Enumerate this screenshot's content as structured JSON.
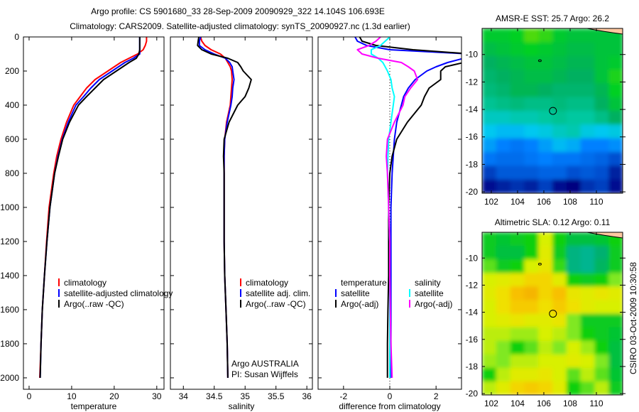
{
  "title_line1": "Argo profile: CS 5901680_33 28-Sep-2009 20090929_322 14.104S 106.693E",
  "title_line2": "Climatology: CARS2009. Satellite-adjusted climatology: synTS_20090927.nc (1.3d earlier)",
  "annotation": [
    "Argo AUSTRALIA",
    "PI: Susan Wijffels"
  ],
  "footer_stamp": "CSIRO 03-Oct-2009 10:30:58",
  "chart_data": [
    {
      "type": "line",
      "id": "temperature",
      "xlabel": "temperature",
      "ylabel": "",
      "xlim": [
        -1.33,
        31.7
      ],
      "ylim": [
        0,
        2067
      ],
      "y_reversed": true,
      "xticks": [
        0,
        10,
        20,
        30
      ],
      "xtick_labels": [
        "0",
        "10",
        "20",
        "30"
      ],
      "yticks": [
        0,
        200,
        400,
        600,
        800,
        1000,
        1200,
        1400,
        1600,
        1800,
        2000
      ],
      "ytick_labels": [
        "0",
        "200",
        "400",
        "600",
        "800",
        "1000",
        "1200",
        "1400",
        "1600",
        "1800",
        "2000"
      ],
      "depth": [
        0,
        25,
        50,
        75,
        100,
        125,
        150,
        175,
        200,
        250,
        300,
        350,
        400,
        500,
        600,
        700,
        800,
        1000,
        1200,
        1400,
        1600,
        1800,
        2000
      ],
      "legend": {
        "placement": "lower-middle",
        "headers": []
      },
      "series": [
        {
          "name": "climatology",
          "color": "#ff0000",
          "values": [
            27.6,
            27.6,
            27.3,
            26.8,
            25.5,
            23.5,
            21.5,
            20,
            18.5,
            15.5,
            13.5,
            12,
            10.5,
            8.8,
            7.5,
            6.5,
            5.8,
            4.7,
            4.1,
            3.6,
            3.1,
            2.8,
            2.5
          ]
        },
        {
          "name": "satellite-adjusted climatology",
          "color": "#0000ff",
          "values": [
            26,
            26,
            26,
            26,
            26,
            24.5,
            22.5,
            21,
            19.5,
            16.5,
            14.5,
            12.8,
            11,
            9.2,
            7.8,
            6.8,
            6,
            4.9,
            4.2,
            3.6,
            3.1,
            2.8,
            2.6
          ]
        },
        {
          "name": "Argo(..raw -QC)",
          "color": "#000000",
          "values": [
            26,
            26,
            26,
            26,
            25.8,
            25.2,
            23.5,
            22,
            20.5,
            17.5,
            15.5,
            13.5,
            11.6,
            9.5,
            7.9,
            6.9,
            6,
            4.9,
            4.2,
            3.6,
            3.1,
            2.8,
            2.6
          ]
        }
      ]
    },
    {
      "type": "line",
      "id": "salinity",
      "xlabel": "salinity",
      "ylabel": "",
      "xlim": [
        33.79,
        36.09
      ],
      "ylim": [
        0,
        2067
      ],
      "y_reversed": true,
      "xticks": [
        34,
        34.5,
        35,
        35.5,
        36
      ],
      "xtick_labels": [
        "34",
        "34.5",
        "35",
        "35.5",
        "36"
      ],
      "yticks": [
        0,
        200,
        400,
        600,
        800,
        1000,
        1200,
        1400,
        1600,
        1800,
        2000
      ],
      "ytick_labels": [],
      "depth": [
        0,
        25,
        50,
        75,
        100,
        125,
        150,
        175,
        200,
        250,
        300,
        350,
        400,
        500,
        600,
        700,
        800,
        1000,
        1200,
        1400,
        1600,
        1800,
        2000
      ],
      "legend": {
        "placement": "lower-right",
        "headers": []
      },
      "series": [
        {
          "name": "climatology",
          "color": "#ff0000",
          "values": [
            34.28,
            34.3,
            34.35,
            34.45,
            34.6,
            34.68,
            34.72,
            34.76,
            34.78,
            34.79,
            34.78,
            34.77,
            34.76,
            34.7,
            34.67,
            34.66,
            34.66,
            34.66,
            34.66,
            34.67,
            34.69,
            34.71,
            34.72
          ]
        },
        {
          "name": "satellite adj. clim.",
          "color": "#0000ff",
          "values": [
            34.28,
            34.26,
            34.26,
            34.35,
            34.5,
            34.68,
            34.75,
            34.79,
            34.8,
            34.82,
            34.8,
            34.79,
            34.77,
            34.71,
            34.67,
            34.66,
            34.66,
            34.66,
            34.66,
            34.67,
            34.69,
            34.71,
            34.72
          ]
        },
        {
          "name": "Argo(..raw -QC)",
          "color": "#000000",
          "values": [
            34.25,
            34.24,
            34.23,
            34.3,
            34.45,
            34.72,
            34.88,
            34.93,
            34.97,
            35.1,
            35.06,
            35.0,
            34.88,
            34.74,
            34.66,
            34.65,
            34.66,
            34.66,
            34.66,
            34.67,
            34.69,
            34.71,
            34.72
          ]
        }
      ]
    },
    {
      "type": "line",
      "id": "difference",
      "xlabel": "difference from climatology",
      "ylabel": "",
      "xlim": [
        -3.1,
        3.1
      ],
      "ylim": [
        0,
        2067
      ],
      "y_reversed": true,
      "xticks": [
        -2,
        0,
        2
      ],
      "xtick_labels": [
        "-2",
        "0",
        "2"
      ],
      "yticks": [
        0,
        200,
        400,
        600,
        800,
        1000,
        1200,
        1400,
        1600,
        1800,
        2000
      ],
      "ytick_labels": [],
      "zero_line": true,
      "depth": [
        0,
        25,
        50,
        75,
        100,
        125,
        150,
        175,
        200,
        250,
        300,
        350,
        400,
        500,
        600,
        700,
        800,
        1000,
        1200,
        1400,
        1600,
        1800,
        2000
      ],
      "legend": {
        "placement": "lower-middle",
        "headers": [
          "temperature",
          "salinity"
        ]
      },
      "series": [
        {
          "name": "satellite",
          "group": "temperature",
          "color": "#0000ff",
          "values": [
            -1.5,
            -1.4,
            -1.0,
            0,
            3.5,
            3.2,
            2.5,
            2.0,
            1.6,
            1.1,
            0.8,
            0.6,
            0.5,
            0.3,
            0.2,
            0.15,
            0.1,
            0.05,
            0.05,
            0.05,
            0.05,
            0.05,
            0.05
          ]
        },
        {
          "name": "Argo(-adj)",
          "group": "temperature",
          "color": "#000000",
          "values": [
            -1.3,
            -1.2,
            -0.6,
            1,
            3.5,
            3.5,
            3.2,
            2.4,
            2.2,
            2.2,
            1.7,
            1.5,
            1.36,
            0.76,
            0.3,
            0.1,
            0,
            -0.05,
            -0.05,
            -0.05,
            -0.08,
            -0.1,
            -0.1
          ]
        },
        {
          "name": "satellite",
          "group": "salinity",
          "color": "#00ffff",
          "values": [
            0,
            -0.2,
            -0.4,
            -0.8,
            -0.8,
            -0.5,
            -0.3,
            -0.2,
            -0.1,
            0.05,
            0.1,
            0.2,
            0.15,
            0.05,
            -0.05,
            -0.08,
            -0.1,
            -0.05,
            0,
            0,
            0,
            0,
            0
          ]
        },
        {
          "name": "Argo(-adj)",
          "group": "salinity",
          "color": "#ff00ff",
          "values": [
            -0.4,
            -0.6,
            -0.9,
            -1.4,
            -1.2,
            -0.5,
            0.5,
            0.8,
            1.06,
            1.2,
            0.9,
            0.65,
            0.57,
            0.2,
            -0.1,
            -0.15,
            -0.1,
            -0.05,
            0,
            0,
            0.02,
            0.05,
            0.1
          ]
        }
      ]
    },
    {
      "type": "heatmap",
      "id": "sst-map",
      "title": "AMSR-E SST: 25.7 Argo: 26.2",
      "xlim": [
        101.3,
        112
      ],
      "ylim": [
        -8.1,
        -20.1
      ],
      "xticks": [
        102,
        104,
        106,
        108,
        110
      ],
      "xtick_labels": [
        "102",
        "104",
        "106",
        "108",
        "110"
      ],
      "yticks": [
        -10,
        -12,
        -14,
        -16,
        -18,
        -20
      ],
      "ytick_labels": [
        "-10",
        "-12",
        "-14",
        "-16",
        "-18",
        "-20"
      ],
      "land_color": "#ffc8a0",
      "argo_position": [
        106.693,
        -14.104
      ],
      "island_position": [
        105.7,
        -10.45
      ],
      "colorscale": [
        [
          24.0,
          "#000080"
        ],
        [
          24.5,
          "#0050d0"
        ],
        [
          25.0,
          "#0080ff"
        ],
        [
          25.5,
          "#00c8f0"
        ],
        [
          26.0,
          "#00c8a0"
        ],
        [
          26.5,
          "#00b060"
        ],
        [
          27.0,
          "#00d020"
        ],
        [
          27.5,
          "#80e000"
        ]
      ],
      "grid": [
        [
          26.9,
          26.9,
          27.0,
          27.3,
          27.2,
          26.9,
          26.8,
          26.8,
          26.8,
          26.8
        ],
        [
          26.7,
          26.8,
          26.9,
          27.0,
          26.9,
          26.8,
          26.7,
          26.7,
          26.8,
          26.8
        ],
        [
          26.5,
          26.6,
          26.7,
          26.8,
          26.8,
          26.7,
          26.6,
          26.6,
          26.8,
          26.9
        ],
        [
          26.4,
          26.5,
          26.6,
          26.7,
          26.7,
          26.6,
          26.5,
          26.5,
          26.8,
          27.1
        ],
        [
          26.3,
          26.4,
          26.6,
          26.6,
          26.5,
          26.4,
          26.4,
          26.4,
          26.6,
          27.0
        ],
        [
          26.1,
          26.2,
          26.3,
          26.2,
          26.2,
          26.3,
          26.2,
          26.2,
          26.5,
          26.8
        ],
        [
          25.8,
          25.8,
          25.9,
          25.9,
          26.0,
          26.1,
          26.0,
          26.0,
          26.2,
          26.5
        ],
        [
          25.5,
          25.4,
          25.4,
          25.5,
          25.6,
          25.8,
          25.9,
          25.6,
          25.5,
          25.6
        ],
        [
          25.2,
          25.0,
          24.9,
          25.0,
          25.2,
          25.4,
          25.3,
          25.0,
          25.0,
          25.1
        ],
        [
          24.9,
          24.8,
          24.8,
          24.9,
          25.0,
          24.9,
          24.9,
          24.8,
          24.7,
          24.5
        ],
        [
          24.4,
          24.6,
          24.6,
          24.6,
          24.7,
          24.7,
          24.5,
          24.6,
          24.5,
          24.2
        ],
        [
          24.1,
          24.2,
          24.3,
          24.2,
          24.4,
          24.1,
          24.0,
          24.3,
          24.4,
          24.1
        ]
      ]
    },
    {
      "type": "heatmap",
      "id": "sla-map",
      "title": "Altimetric SLA: 0.12 Argo: 0.11",
      "xlim": [
        101.3,
        112
      ],
      "ylim": [
        -8.1,
        -20.1
      ],
      "xticks": [
        102,
        104,
        106,
        108,
        110
      ],
      "xtick_labels": [
        "102",
        "104",
        "106",
        "108",
        "110"
      ],
      "yticks": [
        -10,
        -12,
        -14,
        -16,
        -18,
        -20
      ],
      "ytick_labels": [
        "-10",
        "-12",
        "-14",
        "-16",
        "-18",
        "-20"
      ],
      "land_color": "#ffc8a0",
      "argo_position": [
        106.693,
        -14.104
      ],
      "island_position": [
        105.7,
        -10.45
      ],
      "colorscale": [
        [
          -0.06,
          "#00b8a0"
        ],
        [
          -0.03,
          "#00b070"
        ],
        [
          0.0,
          "#00c040"
        ],
        [
          0.03,
          "#10d010"
        ],
        [
          0.06,
          "#80e820"
        ],
        [
          0.09,
          "#d8f000"
        ],
        [
          0.12,
          "#f0e000"
        ],
        [
          0.15,
          "#f8c000"
        ],
        [
          0.18,
          "#f0a000"
        ]
      ],
      "grid": [
        [
          0.02,
          0.01,
          0.02,
          0.03,
          0.09,
          0.03,
          0.0,
          0.0,
          0.01,
          0.03
        ],
        [
          0.02,
          0.0,
          0.0,
          0.03,
          0.1,
          0.02,
          -0.04,
          -0.05,
          -0.03,
          0.02
        ],
        [
          0.05,
          0.02,
          0.03,
          0.09,
          0.11,
          0.04,
          -0.04,
          -0.05,
          -0.02,
          0.02
        ],
        [
          0.09,
          0.1,
          0.11,
          0.13,
          0.13,
          0.1,
          0.03,
          0.02,
          0.03,
          0.06
        ],
        [
          0.1,
          0.12,
          0.15,
          0.16,
          0.13,
          0.15,
          0.11,
          0.1,
          0.11,
          0.1
        ],
        [
          0.09,
          0.12,
          0.14,
          0.14,
          0.12,
          0.14,
          0.12,
          0.1,
          0.09,
          0.09
        ],
        [
          0.09,
          0.1,
          0.11,
          0.1,
          0.1,
          0.11,
          0.06,
          0.02,
          0.02,
          0.02
        ],
        [
          0.08,
          0.08,
          0.07,
          0.07,
          0.09,
          0.08,
          0.06,
          0.03,
          0.02,
          0.01
        ],
        [
          0.08,
          0.06,
          0.03,
          0.05,
          0.08,
          0.06,
          0.09,
          0.07,
          0.03,
          0.0
        ],
        [
          0.07,
          0.06,
          0.08,
          0.08,
          0.09,
          0.09,
          0.1,
          0.09,
          0.06,
          0.0
        ],
        [
          0.03,
          0.08,
          0.1,
          0.1,
          0.11,
          0.09,
          0.05,
          0.08,
          0.05,
          0.01
        ],
        [
          0.08,
          0.1,
          0.13,
          0.14,
          0.13,
          0.1,
          0.03,
          0.05,
          0.08,
          0.02
        ]
      ]
    }
  ]
}
